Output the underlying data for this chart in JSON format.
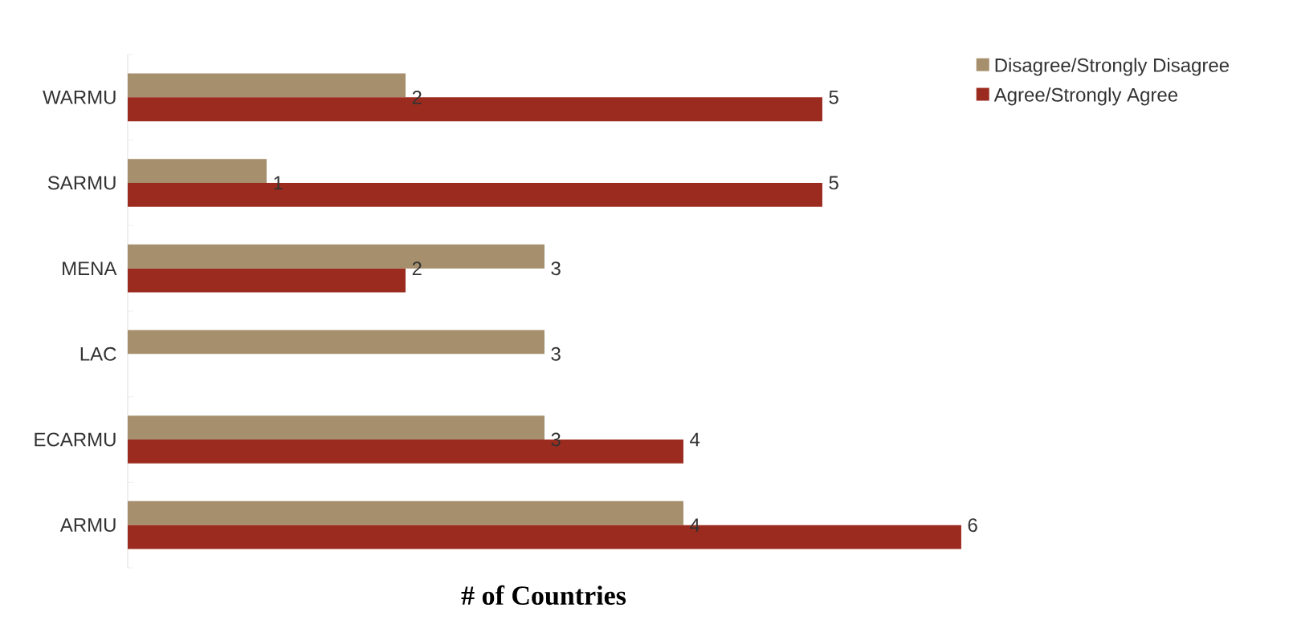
{
  "chart_data": {
    "type": "bar",
    "orientation": "horizontal",
    "xlabel": "# of Countries",
    "categories": [
      "WARMU",
      "SARMU",
      "MENA",
      "LAC",
      "ECARMU",
      "ARMU"
    ],
    "series": [
      {
        "name": "Disagree/Strongly Disagree",
        "color": "#a58f6c",
        "values": [
          2,
          1,
          3,
          3,
          3,
          4
        ]
      },
      {
        "name": "Agree/Strongly Agree",
        "color": "#9c2b1f",
        "values": [
          5,
          5,
          2,
          null,
          4,
          6
        ]
      }
    ],
    "xlim": [
      0,
      6
    ],
    "data_labels": true,
    "legend": "top right",
    "tick_labels": "y",
    "grid": false
  }
}
